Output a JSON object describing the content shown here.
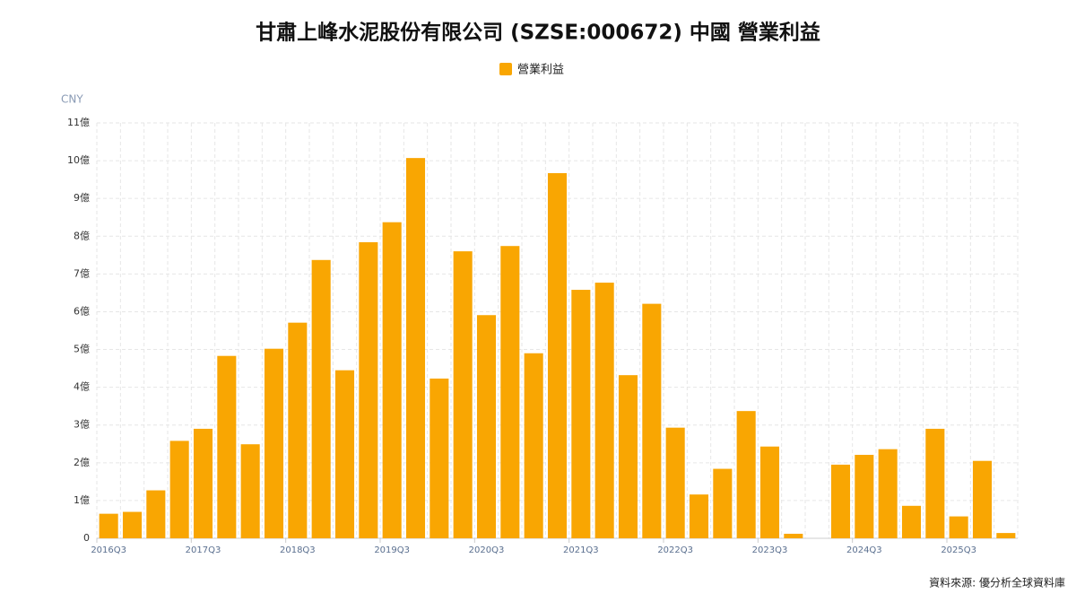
{
  "chart_data": {
    "type": "bar",
    "title": "甘肅上峰水泥股份有限公司 (SZSE:000672) 中國 營業利益",
    "y_unit": "CNY",
    "source": "資料來源: 優分析全球資料庫",
    "categories": [
      "2016Q3",
      null,
      null,
      null,
      "2017Q3",
      null,
      null,
      null,
      "2018Q3",
      null,
      null,
      null,
      "2019Q3",
      null,
      null,
      null,
      "2020Q3",
      null,
      null,
      null,
      "2021Q3",
      null,
      null,
      null,
      "2022Q3",
      null,
      null,
      null,
      "2023Q3",
      null,
      null,
      null,
      "2024Q3",
      null,
      null,
      null,
      "2025Q3",
      null,
      null
    ],
    "series": [
      {
        "name": "營業利益",
        "color": "#f9a602",
        "values": [
          0.65,
          0.7,
          1.27,
          2.58,
          2.9,
          4.83,
          2.49,
          5.02,
          5.71,
          7.37,
          4.45,
          7.84,
          8.37,
          10.07,
          4.23,
          7.6,
          5.91,
          7.74,
          4.9,
          9.67,
          6.58,
          6.77,
          4.32,
          6.21,
          2.93,
          1.16,
          1.84,
          3.37,
          2.43,
          0.12,
          0,
          1.95,
          2.21,
          2.36,
          0.86,
          2.9,
          0.58,
          2.05,
          0.14
        ]
      }
    ],
    "ylim": [
      0,
      11
    ],
    "yticks": [
      0,
      {
        "value": 1,
        "label": "1億"
      },
      {
        "value": 2,
        "label": "2億"
      },
      {
        "value": 3,
        "label": "3億"
      },
      {
        "value": 4,
        "label": "4億"
      },
      {
        "value": 5,
        "label": "5億"
      },
      {
        "value": 6,
        "label": "6億"
      },
      {
        "value": 7,
        "label": "7億"
      },
      {
        "value": 8,
        "label": "8億"
      },
      {
        "value": 9,
        "label": "9億"
      },
      {
        "value": 10,
        "label": "10億"
      },
      {
        "value": 11,
        "label": "11億"
      }
    ],
    "grid": true
  }
}
